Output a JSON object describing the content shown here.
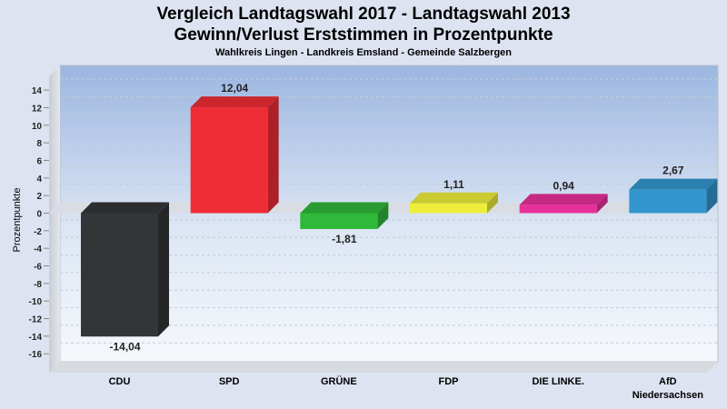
{
  "chart_data": {
    "type": "bar",
    "title": [
      "Vergleich Landtagswahl 2017 - Landtagswahl 2013",
      "Gewinn/Verlust Erststimmen in Prozentpunkte"
    ],
    "subtitle": "Wahlkreis Lingen - Landkreis Emsland - Gemeinde Salzbergen",
    "ylabel": "Prozentpunkte",
    "ylim": [
      -17,
      16
    ],
    "yticks": [
      14,
      12,
      10,
      8,
      6,
      4,
      2,
      0,
      -2,
      -4,
      -6,
      -8,
      -10,
      -12,
      -14,
      -16
    ],
    "categories": [
      "CDU",
      "SPD",
      "GRÜNE",
      "FDP",
      "DIE LINKE.",
      "AfD Niedersachsen"
    ],
    "values": [
      -14.04,
      12.04,
      -1.81,
      1.11,
      0.94,
      2.67
    ],
    "value_labels": [
      "-14,04",
      "12,04",
      "-1,81",
      "1,11",
      "0,94",
      "2,67"
    ],
    "colors": [
      "#343538",
      "#ef2d36",
      "#2fb83a",
      "#eeee3a",
      "#e8309a",
      "#3296cf"
    ],
    "grid": true
  }
}
